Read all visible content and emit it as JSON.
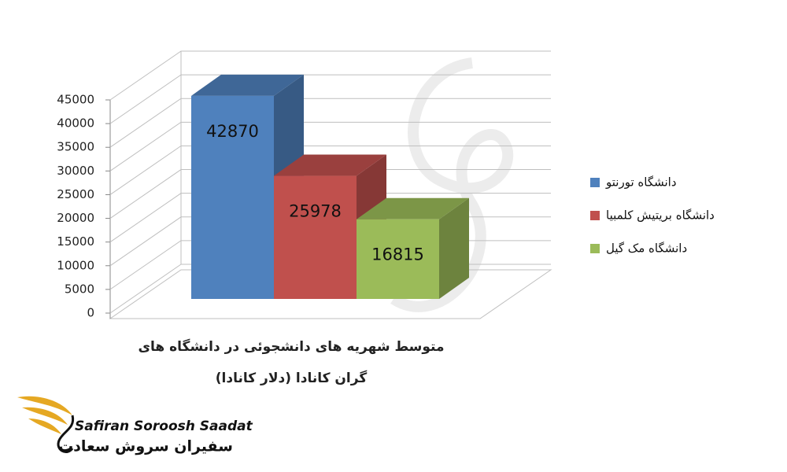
{
  "chart_data": {
    "type": "bar3d",
    "xlabel": [
      "متوسط شهریه های دانشجوئی در دانشگاه های",
      "گران  کانادا (دلار کانادا)"
    ],
    "series": [
      {
        "name": "دانشگاه تورنتو",
        "color": "#4f81bd",
        "values": [
          42870
        ]
      },
      {
        "name": "دانشگاه بریتیش کلمبیا",
        "color": "#c0504d",
        "values": [
          25978
        ]
      },
      {
        "name": "دانشگاه مک گیل",
        "color": "#9bbb59",
        "values": [
          16815
        ]
      }
    ],
    "ylim": [
      0,
      45000
    ],
    "yticks": [
      0,
      5000,
      10000,
      15000,
      20000,
      25000,
      30000,
      35000,
      40000,
      45000
    ],
    "grid": true,
    "legend": "right",
    "data_labels": true
  },
  "logo": {
    "name": "Safiran Soroosh Saadat",
    "name_fa": "سفیران سروش سعادت"
  }
}
